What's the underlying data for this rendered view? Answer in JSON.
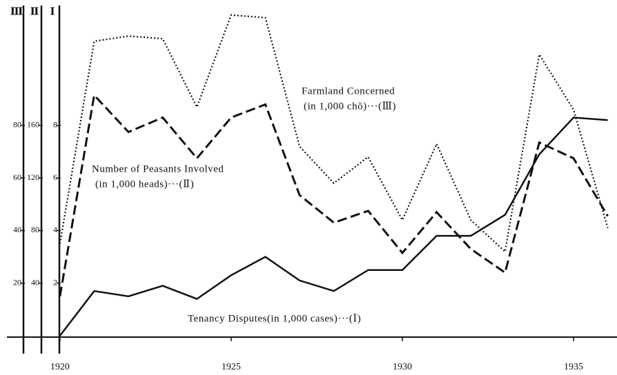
{
  "chart_data": {
    "type": "line",
    "x": [
      1920,
      1921,
      1922,
      1923,
      1924,
      1925,
      1926,
      1927,
      1928,
      1929,
      1930,
      1931,
      1932,
      1933,
      1934,
      1935,
      1936
    ],
    "xlim": [
      1918.45,
      1936.27
    ],
    "xticks": [
      1920,
      1925,
      1930,
      1935
    ],
    "y_title": "Ⅰ",
    "ylim": [
      0,
      12.3
    ],
    "yticks": [
      2,
      4,
      6,
      8
    ],
    "y2_title": "Ⅱ",
    "y2lim": [
      0,
      246
    ],
    "y2ticks": [
      40,
      80,
      120,
      160
    ],
    "y3_title": "Ⅲ",
    "y3lim": [
      0,
      123
    ],
    "y3ticks": [
      20,
      40,
      60,
      80
    ],
    "series": [
      {
        "name": "Tenancy Disputes(in 1,000 cases)···(Ⅰ)",
        "axis": "y",
        "color": "#111",
        "style": "solid",
        "values": [
          0.0,
          1.7,
          1.5,
          1.9,
          1.4,
          2.3,
          3.0,
          2.1,
          1.7,
          2.5,
          2.5,
          3.8,
          3.8,
          4.6,
          6.9,
          8.3,
          8.2
        ]
      },
      {
        "name": "Number of Peasants Involved",
        "unit": "(in 1,000 heads)···(Ⅱ)",
        "axis": "y2",
        "color": "#111",
        "style": "dashed",
        "values": [
          30,
          183,
          155,
          166,
          135,
          166,
          176,
          107,
          86,
          95,
          63,
          94,
          66,
          48,
          147,
          135,
          91
        ]
      },
      {
        "name": "Farmland Concerned",
        "unit": "(in 1,000 chō)···(Ⅲ)",
        "axis": "y3",
        "color": "#111",
        "style": "dotted",
        "values": [
          35,
          112,
          114,
          113,
          87,
          122,
          121,
          72,
          58,
          68,
          44,
          73,
          44,
          32,
          107,
          86,
          41
        ]
      }
    ]
  }
}
